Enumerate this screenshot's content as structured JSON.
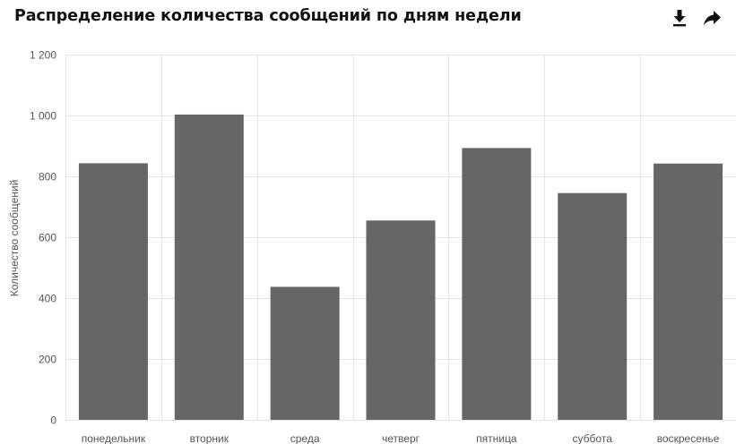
{
  "header": {
    "title": "Распределение количества сообщений по дням недели",
    "icons": {
      "download": "download-icon",
      "share": "share-arrow-icon"
    }
  },
  "chart_data": {
    "type": "bar",
    "title": "Распределение количества сообщений по дням недели",
    "xlabel": "",
    "ylabel": "Количество сообщений",
    "categories": [
      "понедельник",
      "вторник",
      "среда",
      "четверг",
      "пятница",
      "суббота",
      "воскресенье"
    ],
    "values": [
      843,
      1003,
      437,
      655,
      893,
      745,
      842
    ],
    "ylim": [
      0,
      1200
    ],
    "yticks": [
      0,
      200,
      400,
      600,
      800,
      1000,
      1200
    ],
    "ytick_labels": [
      "0",
      "200",
      "400",
      "600",
      "800",
      "1 000",
      "1 200"
    ],
    "grid": true,
    "legend": "none",
    "bar_color": "#666666",
    "grid_color": "#e3e3e3"
  }
}
